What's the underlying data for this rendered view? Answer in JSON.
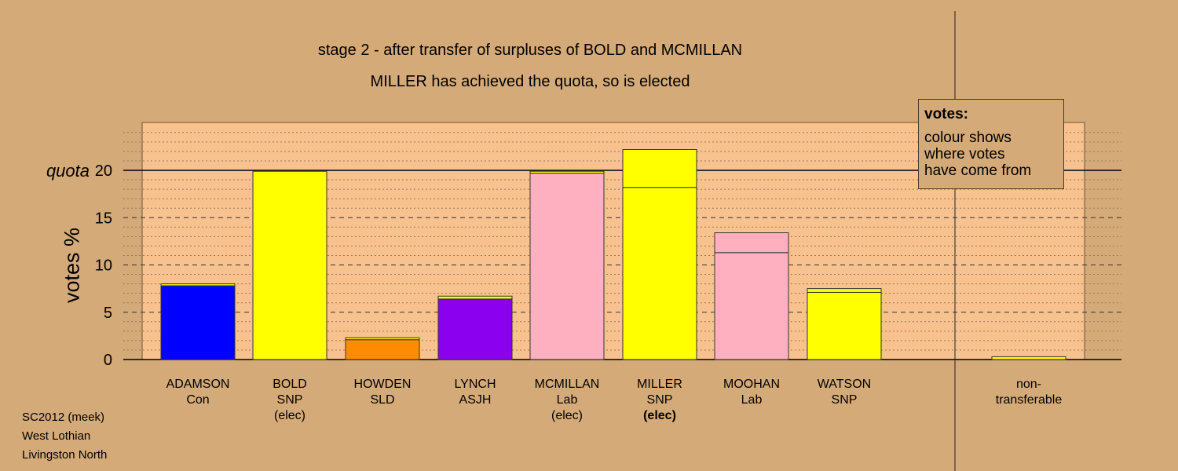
{
  "title_line1": "stage 2 - after transfer of surpluses of BOLD and MCMILLAN",
  "title_line2": "MILLER has achieved the quota, so is elected",
  "footer": {
    "line1": "SC2012 (meek)",
    "line2": "West Lothian",
    "line3": "Livingston North"
  },
  "legend": {
    "title": "votes:",
    "line1": "colour shows",
    "line2": "where votes",
    "line3": "have come from"
  },
  "colors": {
    "background": "#d4aa78",
    "plot_area": "#f8c28e",
    "con": "#0000ff",
    "snp": "#ffff00",
    "sld": "#ff8c00",
    "asjh": "#8b00ee",
    "lab": "#ffb0c0"
  },
  "chart_data": {
    "type": "bar",
    "stacked": true,
    "ylabel": "votes %",
    "quota_label": "quota",
    "quota": 20,
    "ylim": [
      0,
      25
    ],
    "yticks": [
      0,
      5,
      10,
      15,
      20
    ],
    "grid": true,
    "legend_position": "top-right",
    "candidates": [
      {
        "name": "ADAMSON",
        "party": "Con",
        "note": "",
        "note_bold": false,
        "segments": [
          {
            "color": "#0000ff",
            "value": 7.8
          },
          {
            "color": "#ffff00",
            "value": 0.2
          }
        ]
      },
      {
        "name": "BOLD",
        "party": "SNP",
        "note": "(elec)",
        "note_bold": false,
        "segments": [
          {
            "color": "#ffff00",
            "value": 19.9
          }
        ]
      },
      {
        "name": "HOWDEN",
        "party": "SLD",
        "note": "",
        "note_bold": false,
        "segments": [
          {
            "color": "#ff8c00",
            "value": 2.1
          },
          {
            "color": "#ffff00",
            "value": 0.2
          }
        ]
      },
      {
        "name": "LYNCH",
        "party": "ASJH",
        "note": "",
        "note_bold": false,
        "segments": [
          {
            "color": "#8b00ee",
            "value": 6.4
          },
          {
            "color": "#ffff00",
            "value": 0.3
          }
        ]
      },
      {
        "name": "MCMILLAN",
        "party": "Lab",
        "note": "(elec)",
        "note_bold": false,
        "segments": [
          {
            "color": "#ffb0c0",
            "value": 19.7
          },
          {
            "color": "#ffff00",
            "value": 0.2
          }
        ]
      },
      {
        "name": "MILLER",
        "party": "SNP",
        "note": "(elec)",
        "note_bold": true,
        "segments": [
          {
            "color": "#ffff00",
            "value": 18.2
          },
          {
            "color": "#ffff00",
            "value": 4.0
          }
        ]
      },
      {
        "name": "MOOHAN",
        "party": "Lab",
        "note": "",
        "note_bold": false,
        "segments": [
          {
            "color": "#ffb0c0",
            "value": 11.3
          },
          {
            "color": "#ffb0c0",
            "value": 2.1
          }
        ]
      },
      {
        "name": "WATSON",
        "party": "SNP",
        "note": "",
        "note_bold": false,
        "segments": [
          {
            "color": "#ffff00",
            "value": 7.1
          },
          {
            "color": "#ffff00",
            "value": 0.4
          }
        ]
      }
    ],
    "non_transferable": {
      "label_line1": "non-",
      "label_line2": "transferable",
      "segments": [
        {
          "color": "#ffff00",
          "value": 0.3
        }
      ]
    }
  }
}
